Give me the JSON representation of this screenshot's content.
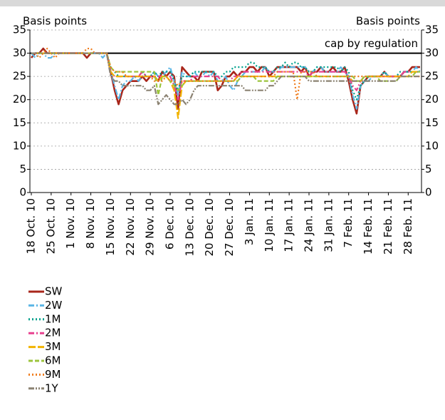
{
  "chart_data": {
    "type": "line",
    "ylabel": "Basis points",
    "y2label": "Basis points",
    "cap": 30,
    "cap_label": "cap by regulation",
    "ylim": [
      0,
      35
    ],
    "yticks": [
      0,
      5,
      10,
      15,
      20,
      25,
      30,
      35
    ],
    "y2lim": [
      0,
      35
    ],
    "y2ticks": [
      0,
      5,
      10,
      15,
      20,
      25,
      30,
      35
    ],
    "grid": true,
    "legend": "bottom-left",
    "categories": [
      "18 Oct. 10",
      null,
      null,
      null,
      null,
      "25 Oct. 10",
      null,
      null,
      null,
      null,
      "1 Nov. 10",
      null,
      null,
      null,
      null,
      "8 Nov. 10",
      null,
      null,
      null,
      null,
      "15 Nov. 10",
      null,
      null,
      null,
      null,
      "22 Nov. 10",
      null,
      null,
      null,
      null,
      "29 Nov. 10",
      null,
      null,
      null,
      null,
      "6 Dec. 10",
      null,
      null,
      null,
      null,
      "13 Dec. 10",
      null,
      null,
      null,
      null,
      "20 Dec. 10",
      null,
      null,
      null,
      null,
      "27 Dec. 10",
      null,
      null,
      null,
      null,
      "3 Jan. 11",
      null,
      null,
      null,
      null,
      "10 Jan. 11",
      null,
      null,
      null,
      null,
      "17 Jan. 11",
      null,
      null,
      null,
      null,
      "24 Jan. 11",
      null,
      null,
      null,
      null,
      "31 Jan. 11",
      null,
      null,
      null,
      null,
      "7 Feb. 11",
      null,
      null,
      null,
      null,
      "14 Feb. 11",
      null,
      null,
      null,
      null,
      "21 Feb. 11",
      null,
      null,
      null,
      null,
      "28 Feb. 11",
      null,
      null,
      null
    ],
    "series": [
      {
        "name": "SW",
        "color": "#a8261b",
        "style": "solid",
        "values": [
          29,
          30,
          30,
          31,
          30,
          30,
          30,
          30,
          30,
          30,
          30,
          30,
          30,
          30,
          29,
          30,
          30,
          30,
          30,
          30,
          26,
          22,
          19,
          22,
          23,
          24,
          24,
          24,
          25,
          24,
          25,
          25,
          24,
          26,
          25,
          26,
          25,
          18,
          27,
          26,
          25,
          25,
          24,
          26,
          26,
          26,
          26,
          22,
          23,
          25,
          25,
          26,
          25,
          26,
          26,
          27,
          27,
          26,
          27,
          27,
          25,
          26,
          27,
          27,
          27,
          27,
          27,
          27,
          26,
          27,
          25,
          26,
          26,
          27,
          26,
          26,
          27,
          26,
          26,
          27,
          24,
          20,
          17,
          23,
          24,
          25,
          25,
          25,
          25,
          26,
          25,
          25,
          25,
          25,
          26,
          26,
          27,
          27,
          27
        ]
      },
      {
        "name": "2W",
        "color": "#5cb6e6",
        "style": "dashdot",
        "values": [
          30,
          29,
          30,
          30,
          29,
          29,
          30,
          30,
          30,
          30,
          30,
          30,
          30,
          30,
          30,
          30,
          30,
          30,
          29,
          30,
          26,
          23,
          20,
          23,
          24,
          24,
          25,
          24,
          25,
          25,
          25,
          26,
          25,
          25,
          26,
          27,
          24,
          21,
          26,
          25,
          25,
          26,
          25,
          25,
          26,
          25,
          26,
          24,
          24,
          25,
          23,
          22,
          24,
          25,
          26,
          26,
          26,
          26,
          26,
          27,
          26,
          26,
          26,
          27,
          27,
          27,
          27,
          27,
          27,
          27,
          26,
          26,
          27,
          27,
          26,
          26,
          26,
          26,
          27,
          26,
          25,
          21,
          18,
          23,
          24,
          24,
          25,
          25,
          25,
          26,
          25,
          25,
          25,
          25,
          26,
          26,
          26,
          27,
          26
        ]
      },
      {
        "name": "1M",
        "color": "#00a08c",
        "style": "dotted",
        "values": [
          30,
          30,
          30,
          30,
          30,
          30,
          30,
          30,
          30,
          30,
          30,
          30,
          30,
          30,
          30,
          30,
          30,
          30,
          30,
          30,
          27,
          26,
          25,
          25,
          25,
          25,
          25,
          25,
          26,
          25,
          25,
          26,
          25,
          26,
          26,
          26,
          24,
          22,
          25,
          25,
          25,
          26,
          26,
          26,
          26,
          26,
          26,
          25,
          25,
          26,
          26,
          27,
          27,
          27,
          27,
          28,
          28,
          27,
          27,
          27,
          26,
          26,
          27,
          27,
          28,
          27,
          28,
          28,
          27,
          27,
          26,
          26,
          27,
          27,
          27,
          27,
          27,
          27,
          26,
          27,
          26,
          22,
          20,
          23,
          24,
          25,
          25,
          25,
          25,
          26,
          25,
          25,
          25,
          26,
          26,
          26,
          26,
          26,
          26
        ]
      },
      {
        "name": "2M",
        "color": "#e8418f",
        "style": "dashdot",
        "values": [
          30,
          30,
          30,
          30,
          30,
          30,
          30,
          30,
          30,
          30,
          30,
          30,
          30,
          30,
          30,
          30,
          30,
          30,
          30,
          30,
          26,
          25,
          25,
          25,
          25,
          25,
          25,
          25,
          26,
          25,
          25,
          25,
          25,
          25,
          25,
          25,
          23,
          20,
          24,
          24,
          24,
          25,
          25,
          25,
          25,
          25,
          25,
          25,
          24,
          24,
          24,
          25,
          25,
          26,
          26,
          26,
          26,
          26,
          26,
          26,
          26,
          26,
          26,
          26,
          26,
          26,
          26,
          26,
          26,
          26,
          25,
          26,
          26,
          26,
          26,
          26,
          26,
          26,
          26,
          26,
          25,
          23,
          22,
          24,
          25,
          25,
          25,
          25,
          25,
          25,
          25,
          25,
          25,
          25,
          26,
          26,
          26,
          26,
          26
        ]
      },
      {
        "name": "3M",
        "color": "#f2b300",
        "style": "longdash",
        "values": [
          30,
          30,
          30,
          30,
          30,
          30,
          30,
          30,
          30,
          30,
          30,
          30,
          30,
          30,
          30,
          30,
          30,
          30,
          30,
          30,
          26,
          25,
          25,
          25,
          25,
          25,
          25,
          25,
          25,
          25,
          25,
          25,
          24,
          25,
          25,
          24,
          22,
          16,
          23,
          24,
          24,
          24,
          24,
          24,
          24,
          24,
          24,
          24,
          24,
          24,
          24,
          24,
          25,
          25,
          25,
          25,
          25,
          25,
          25,
          25,
          25,
          25,
          25,
          25,
          25,
          25,
          25,
          25,
          25,
          25,
          25,
          25,
          25,
          25,
          25,
          25,
          25,
          25,
          25,
          25,
          25,
          24,
          24,
          24,
          25,
          25,
          25,
          25,
          25,
          25,
          25,
          25,
          25,
          25,
          25,
          25,
          26,
          26,
          26
        ]
      },
      {
        "name": "6M",
        "color": "#9cc43c",
        "style": "dashed",
        "values": [
          30,
          30,
          30,
          30,
          30,
          30,
          30,
          30,
          30,
          30,
          30,
          30,
          30,
          30,
          30,
          30,
          30,
          30,
          30,
          30,
          27,
          26,
          26,
          26,
          26,
          26,
          26,
          26,
          26,
          26,
          26,
          26,
          21,
          25,
          25,
          24,
          23,
          22,
          23,
          24,
          24,
          24,
          24,
          24,
          24,
          24,
          24,
          24,
          24,
          24,
          24,
          24,
          24,
          25,
          25,
          25,
          25,
          24,
          24,
          24,
          24,
          24,
          25,
          25,
          25,
          25,
          25,
          25,
          25,
          25,
          25,
          25,
          25,
          25,
          25,
          25,
          25,
          25,
          25,
          25,
          25,
          25,
          24,
          24,
          25,
          25,
          25,
          25,
          24,
          24,
          24,
          24,
          24,
          25,
          25,
          25,
          25,
          26,
          26
        ]
      },
      {
        "name": "9M",
        "color": "#f07c1c",
        "style": "dotted",
        "values": [
          30,
          30,
          29,
          30,
          31,
          30,
          29,
          30,
          30,
          30,
          30,
          30,
          30,
          30,
          31,
          31,
          30,
          30,
          30,
          30,
          27,
          26,
          26,
          26,
          25,
          25,
          25,
          25,
          25,
          25,
          25,
          24,
          24,
          24,
          25,
          24,
          24,
          23,
          24,
          24,
          24,
          24,
          24,
          24,
          24,
          24,
          24,
          24,
          24,
          24,
          24,
          24,
          25,
          25,
          25,
          25,
          25,
          25,
          25,
          25,
          25,
          25,
          26,
          26,
          26,
          26,
          26,
          20,
          26,
          26,
          26,
          26,
          25,
          25,
          25,
          25,
          25,
          25,
          25,
          25,
          25,
          25,
          25,
          25,
          25,
          25,
          25,
          25,
          25,
          25,
          25,
          25,
          25,
          25,
          25,
          25,
          25,
          25,
          25
        ]
      },
      {
        "name": "1Y",
        "color": "#8b8272",
        "style": "dashdotdot",
        "values": [
          30,
          30,
          30,
          30,
          30,
          30,
          30,
          30,
          30,
          30,
          30,
          30,
          30,
          30,
          30,
          30,
          30,
          30,
          30,
          30,
          25,
          24,
          24,
          23,
          23,
          23,
          23,
          23,
          23,
          22,
          22,
          23,
          19,
          20,
          21,
          20,
          19,
          19,
          20,
          19,
          20,
          22,
          23,
          23,
          23,
          23,
          23,
          23,
          23,
          23,
          23,
          23,
          23,
          23,
          22,
          22,
          22,
          22,
          22,
          22,
          23,
          23,
          24,
          25,
          25,
          25,
          25,
          25,
          25,
          25,
          24,
          24,
          24,
          24,
          24,
          24,
          24,
          24,
          24,
          24,
          24,
          24,
          24,
          24,
          24,
          24,
          24,
          24,
          24,
          24,
          24,
          24,
          24,
          25,
          25,
          25,
          25,
          25,
          25
        ]
      }
    ]
  }
}
